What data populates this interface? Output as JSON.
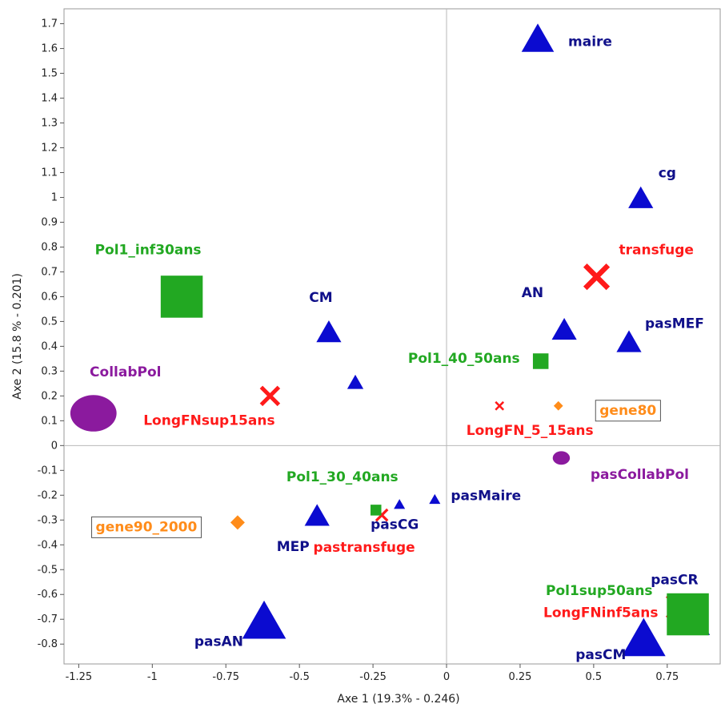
{
  "chart_data": {
    "type": "scatter",
    "xlabel": "Axe 1 (19.3% - 0.246)",
    "ylabel": "Axe 2 (15.8 % - 0.201)",
    "xlim": [
      -1.3,
      0.93
    ],
    "ylim": [
      -0.88,
      1.76
    ],
    "xticks": [
      -1.25,
      -1,
      -0.75,
      -0.5,
      -0.25,
      0,
      0.25,
      0.5,
      0.75
    ],
    "xtick_labels": [
      "-1.25",
      "-1",
      "-0.75",
      "-0.5",
      "-0.25",
      "0",
      "0.25",
      "0.5",
      "0.75"
    ],
    "yticks": [
      -0.8,
      -0.7,
      -0.6,
      -0.5,
      -0.4,
      -0.3,
      -0.2,
      -0.1,
      0,
      0.1,
      0.2,
      0.3,
      0.4,
      0.5,
      0.6,
      0.7,
      0.8,
      0.9,
      1,
      1.1,
      1.2,
      1.3,
      1.4,
      1.5,
      1.6,
      1.7
    ],
    "ytick_labels": [
      "-0.8",
      "-0.7",
      "-0.6",
      "-0.5",
      "-0.4",
      "-0.3",
      "-0.2",
      "-0.1",
      "0",
      "0.1",
      "0.2",
      "0.3",
      "0.4",
      "0.5",
      "0.6",
      "0.7",
      "0.8",
      "0.9",
      "1",
      "1.1",
      "1.2",
      "1.3",
      "1.4",
      "1.5",
      "1.6",
      "1.7"
    ],
    "grid": false,
    "reference_lines": {
      "x": 0,
      "y": 0
    },
    "colors": {
      "triangle": "#0b0bd0",
      "triangle_label": "#10108a",
      "cross": "#ff1a1a",
      "square": "#22a822",
      "square_label": "#22a822",
      "diamond": "#ff8c1a",
      "circle": "#8b1a9e"
    },
    "points": [
      {
        "label": "maire",
        "x": 0.31,
        "y": 1.63,
        "marker": "triangle",
        "size": "large"
      },
      {
        "label": "cg",
        "x": 0.66,
        "y": 0.99,
        "marker": "triangle",
        "size": "medium"
      },
      {
        "label": "AN",
        "x": 0.4,
        "y": 0.46,
        "marker": "triangle",
        "size": "medium"
      },
      {
        "label": "pasMEF",
        "x": 0.62,
        "y": 0.41,
        "marker": "triangle",
        "size": "medium"
      },
      {
        "label": "CM",
        "x": -0.4,
        "y": 0.45,
        "marker": "triangle",
        "size": "medium"
      },
      {
        "label": "",
        "x": -0.31,
        "y": 0.25,
        "marker": "triangle",
        "size": "small"
      },
      {
        "label": "pasMaire",
        "x": -0.04,
        "y": -0.22,
        "marker": "triangle",
        "size": "tiny"
      },
      {
        "label": "pasCG",
        "x": -0.16,
        "y": -0.24,
        "marker": "triangle",
        "size": "tiny"
      },
      {
        "label": "MEP",
        "x": -0.44,
        "y": -0.29,
        "marker": "triangle",
        "size": "medium"
      },
      {
        "label": "pasAN",
        "x": -0.62,
        "y": -0.72,
        "marker": "triangle",
        "size": "xlarge"
      },
      {
        "label": "pasCR",
        "x": 0.84,
        "y": -0.72,
        "marker": "triangle",
        "size": "large"
      },
      {
        "label": "pasCM",
        "x": 0.67,
        "y": -0.79,
        "marker": "triangle",
        "size": "xlarge"
      },
      {
        "label": "transfuge",
        "x": 0.51,
        "y": 0.68,
        "marker": "cross",
        "size": "large"
      },
      {
        "label": "LongFNsup15ans",
        "x": -0.6,
        "y": 0.2,
        "marker": "cross",
        "size": "medium"
      },
      {
        "label": "LongFN_5_15ans",
        "x": 0.18,
        "y": 0.16,
        "marker": "cross",
        "size": "tiny"
      },
      {
        "label": "pastransfuge",
        "x": -0.22,
        "y": -0.28,
        "marker": "cross",
        "size": "small"
      },
      {
        "label": "LongFNinf5ans",
        "x": 0.79,
        "y": -0.65,
        "marker": "cross",
        "size": "large"
      },
      {
        "label": "Pol1_inf30ans",
        "x": -0.9,
        "y": 0.6,
        "marker": "square",
        "size": "xlarge"
      },
      {
        "label": "Pol1_40_50ans",
        "x": 0.32,
        "y": 0.34,
        "marker": "square",
        "size": "small"
      },
      {
        "label": "Pol1_30_40ans",
        "x": -0.24,
        "y": -0.26,
        "marker": "square",
        "size": "tiny"
      },
      {
        "label": "Pol1sup50ans",
        "x": 0.82,
        "y": -0.68,
        "marker": "square",
        "size": "xlarge"
      },
      {
        "label": "gene80",
        "x": 0.38,
        "y": 0.16,
        "marker": "diamond",
        "size": "small",
        "boxed": true
      },
      {
        "label": "gene90_2000",
        "x": -0.71,
        "y": -0.31,
        "marker": "diamond",
        "size": "medium",
        "boxed": true
      },
      {
        "label": "CollabPol",
        "x": -1.2,
        "y": 0.13,
        "marker": "circle",
        "size": "xlarge"
      },
      {
        "label": "pasCollabPol",
        "x": 0.39,
        "y": -0.05,
        "marker": "circle",
        "size": "small"
      }
    ]
  }
}
